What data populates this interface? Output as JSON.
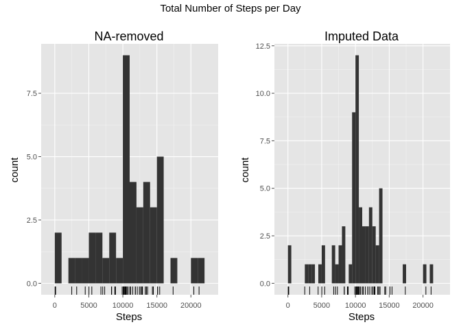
{
  "figure": {
    "title": "Total Number of Steps per Day"
  },
  "colors": {
    "panel_bg": "#e5e5e5",
    "grid_major": "#ffffff",
    "grid_minor": "#f2f2f2",
    "bar": "#333333",
    "rug": "#000000",
    "tick_text": "#4d4d4d"
  },
  "chart_data": [
    {
      "type": "bar",
      "title": "NA-removed",
      "xlabel": "Steps",
      "ylabel": "count",
      "binwidth": 1000,
      "bin_starts": [
        0,
        1000,
        2000,
        3000,
        4000,
        5000,
        6000,
        7000,
        8000,
        9000,
        10000,
        11000,
        12000,
        13000,
        14000,
        15000,
        16000,
        17000,
        18000,
        19000,
        20000,
        21000
      ],
      "values": [
        2,
        0,
        1,
        1,
        1,
        2,
        2,
        1,
        2,
        1,
        9,
        4,
        3,
        4,
        3,
        5,
        0,
        1,
        0,
        0,
        1,
        1
      ],
      "xlim": [
        -2000,
        24000
      ],
      "ylim": [
        -0.45,
        9.45
      ],
      "xticks": [
        0,
        5000,
        10000,
        15000,
        20000
      ],
      "yticks": [
        0,
        2.5,
        5,
        7.5
      ],
      "yticklabels": [
        "0.0",
        "2.5",
        "5.0",
        "7.5"
      ],
      "grid": true,
      "rug": [
        41,
        126,
        2492,
        3219,
        4472,
        5018,
        5441,
        6778,
        7047,
        7336,
        8334,
        8355,
        8821,
        8841,
        8918,
        9900,
        10056,
        10139,
        10183,
        10304,
        10395,
        10439,
        10571,
        10600,
        10765,
        11015,
        11162,
        11458,
        11829,
        11834,
        12116,
        12426,
        12608,
        12787,
        12811,
        12883,
        13294,
        13452,
        13460,
        13646,
        14339,
        14478,
        15098,
        15110,
        15414,
        17382,
        20427,
        21194
      ]
    },
    {
      "type": "bar",
      "title": "Imputed Data",
      "xlabel": "Steps",
      "ylabel": "count",
      "binwidth": 500,
      "bin_starts": [
        0,
        500,
        1000,
        1500,
        2000,
        2500,
        3000,
        3500,
        4000,
        4500,
        5000,
        5500,
        6000,
        6500,
        7000,
        7500,
        8000,
        8500,
        9000,
        9500,
        10000,
        10500,
        11000,
        11500,
        12000,
        12500,
        13000,
        13500,
        14000,
        14500,
        15000,
        15500,
        16000,
        16500,
        17000,
        17500,
        18000,
        18500,
        19000,
        19500,
        20000,
        20500,
        21000,
        21500
      ],
      "values": [
        2,
        0,
        0,
        0,
        0,
        1,
        1,
        1,
        0,
        1,
        2,
        0,
        0,
        2,
        1,
        2,
        3,
        0,
        1,
        9,
        12,
        4,
        3,
        3,
        4,
        3,
        2,
        5,
        0,
        0,
        0,
        0,
        0,
        0,
        1,
        0,
        0,
        0,
        0,
        0,
        1,
        0,
        1,
        0
      ],
      "xlim": [
        -2000,
        24000
      ],
      "ylim": [
        -0.6,
        12.6
      ],
      "xticks": [
        0,
        5000,
        10000,
        15000,
        20000
      ],
      "yticks": [
        0,
        2.5,
        5,
        7.5,
        10,
        12.5
      ],
      "yticklabels": [
        "0.0",
        "2.5",
        "5.0",
        "7.5",
        "10.0",
        "12.5"
      ],
      "grid": true,
      "rug": [
        41,
        126,
        2492,
        3219,
        4472,
        5018,
        5441,
        6778,
        7047,
        7336,
        8334,
        8355,
        8821,
        8841,
        8918,
        9900,
        10056,
        10139,
        10183,
        10304,
        10395,
        10439,
        10571,
        10600,
        10765,
        11015,
        11162,
        11458,
        11829,
        11834,
        12116,
        12426,
        12608,
        12787,
        12811,
        12883,
        13294,
        13452,
        13460,
        13646,
        14339,
        14478,
        15098,
        15110,
        15414,
        17382,
        20427,
        21194
      ]
    }
  ]
}
